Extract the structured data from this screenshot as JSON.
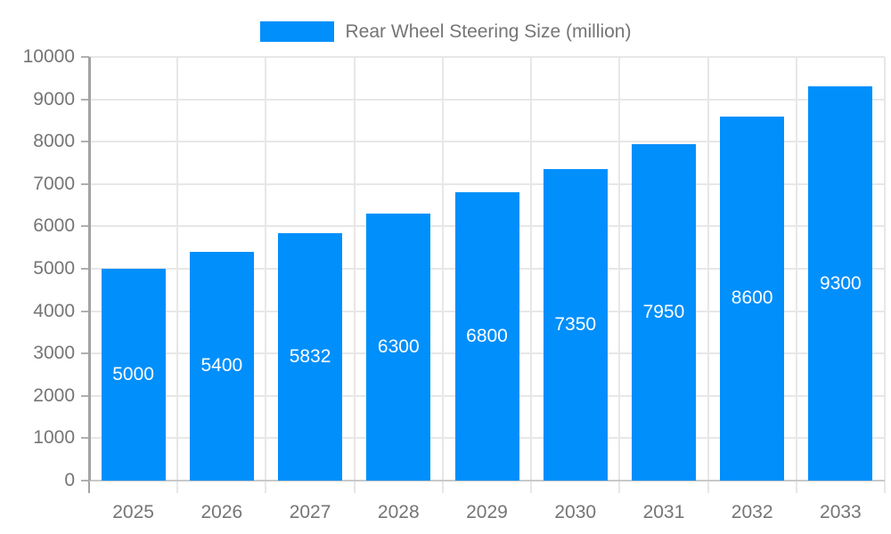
{
  "chart_data": {
    "type": "bar",
    "title": "Rear Wheel Steering Size (million)",
    "categories": [
      "2025",
      "2026",
      "2027",
      "2028",
      "2029",
      "2030",
      "2031",
      "2032",
      "2033"
    ],
    "series": [
      {
        "name": "Rear Wheel Steering Size (million)",
        "values": [
          5000,
          5400,
          5832,
          6300,
          6800,
          7350,
          7950,
          8600,
          9300
        ]
      }
    ],
    "bar_labels": [
      "5000",
      "5400",
      "5832",
      "6300",
      "6800",
      "7350",
      "7950",
      "8600",
      "9300"
    ],
    "xlabel": "",
    "ylabel": "",
    "ylim": [
      0,
      10000
    ],
    "y_ticks": [
      0,
      1000,
      2000,
      3000,
      4000,
      5000,
      6000,
      7000,
      8000,
      9000,
      10000
    ],
    "grid": "both",
    "legend_position": "top",
    "colors": {
      "bar": "#008FFB",
      "bar_label": "#ffffff",
      "grid": "#e7e7e7",
      "baseline": "#c9c9c9",
      "y_axis_line": "#a3a3a3",
      "y_tick_dash": "#b0b0b0",
      "tick_label": "#757575",
      "legend_text": "#757575"
    }
  }
}
